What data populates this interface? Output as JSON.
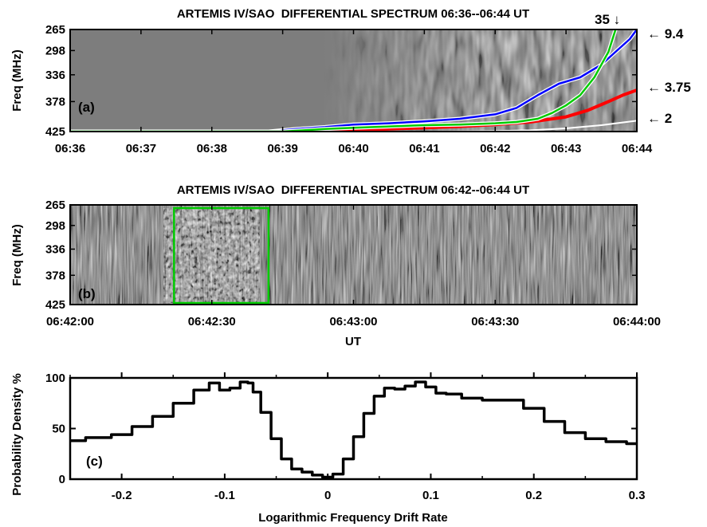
{
  "chart_data": [
    {
      "panel": "a",
      "type": "line",
      "title": "ARTEMIS IV/SAO  DIFFERENTIAL SPECTRUM 06:36--06:44 UT",
      "ylabel": "Freq (MHz)",
      "panel_label": "(a)",
      "x_tick_labels": [
        "06:36",
        "06:37",
        "06:38",
        "06:39",
        "06:40",
        "06:41",
        "06:42",
        "06:43",
        "06:44"
      ],
      "y_tick_labels": [
        "265",
        "298",
        "336",
        "378",
        "425"
      ],
      "ylim": [
        425,
        265
      ],
      "background": "differential radio spectrogram (grey)",
      "series": [
        {
          "name": "35",
          "color": "#00cc00",
          "x_minutes": [
            0,
            1,
            2,
            3,
            3.3,
            3.6,
            4.0,
            4.5,
            5.0,
            5.5,
            6.0,
            6.3,
            6.6,
            6.8,
            7.0,
            7.2,
            7.4,
            7.6,
            7.7
          ],
          "y_mhz": [
            425,
            425,
            425,
            425,
            423,
            421,
            419,
            417,
            415,
            414,
            412,
            410,
            405,
            396,
            384,
            368,
            340,
            300,
            265
          ]
        },
        {
          "name": "9.4",
          "color": "#0000ff",
          "x_minutes": [
            0,
            1,
            2,
            2.8,
            3.2,
            3.6,
            4.0,
            4.5,
            5.0,
            5.5,
            6.0,
            6.3,
            6.6,
            6.9,
            7.2,
            7.5,
            7.7,
            7.9,
            8.0
          ],
          "y_mhz": [
            425,
            425,
            425,
            425,
            421,
            418,
            414,
            412,
            409,
            405,
            398,
            388,
            368,
            350,
            340,
            320,
            300,
            280,
            265
          ]
        },
        {
          "name": "3.75",
          "color": "#ff0000",
          "x_minutes": [
            0,
            1,
            2,
            3,
            3.5,
            4.0,
            4.5,
            5.0,
            5.5,
            6.0,
            6.5,
            7.0,
            7.3,
            7.6,
            7.8,
            8.0
          ],
          "y_mhz": [
            425,
            425,
            425,
            425,
            424,
            423,
            421,
            419,
            417,
            414,
            410,
            402,
            392,
            378,
            368,
            360
          ]
        },
        {
          "name": "2",
          "color": "#ffffff",
          "x_minutes": [
            0,
            1,
            2,
            3,
            4,
            5,
            6,
            6.5,
            7.0,
            7.5,
            8.0
          ],
          "y_mhz": [
            425,
            425,
            425,
            425,
            425,
            425,
            424,
            423,
            420,
            415,
            408
          ]
        }
      ],
      "annotations": [
        "35 ↓",
        "← 9.4",
        "← 3.75",
        "← 2"
      ]
    },
    {
      "panel": "b",
      "type": "heatmap",
      "title": "ARTEMIS IV/SAO  DIFFERENTIAL SPECTRUM 06:42--06:44 UT",
      "ylabel": "Freq (MHz)",
      "xlabel": "UT",
      "panel_label": "(b)",
      "x_tick_labels": [
        "06:42:00",
        "06:42:30",
        "06:43:00",
        "06:43:30",
        "06:44:00"
      ],
      "y_tick_labels": [
        "265",
        "298",
        "336",
        "378",
        "425"
      ],
      "background": "differential radio spectrogram (grey)",
      "highlight_box": {
        "color": "#00cc00",
        "t_start_s": 22,
        "t_end_s": 42
      }
    },
    {
      "panel": "c",
      "type": "line",
      "xlabel": "Logarithmic Frequency Drift Rate",
      "ylabel": "Probability Density %",
      "panel_label": "(c)",
      "x_tick_labels": [
        "-0.2",
        "-0.1",
        "0",
        "0.1",
        "0.2",
        "0.3"
      ],
      "y_tick_labels": [
        "0",
        "50",
        "100"
      ],
      "xlim": [
        -0.25,
        0.3
      ],
      "ylim": [
        0,
        100
      ],
      "series": [
        {
          "color": "#000000",
          "x": [
            -0.25,
            -0.22,
            -0.2,
            -0.18,
            -0.16,
            -0.14,
            -0.12,
            -0.11,
            -0.1,
            -0.09,
            -0.08,
            -0.075,
            -0.07,
            -0.06,
            -0.05,
            -0.04,
            -0.03,
            -0.02,
            -0.01,
            0.0,
            0.01,
            0.02,
            0.03,
            0.04,
            0.05,
            0.06,
            0.07,
            0.08,
            0.09,
            0.1,
            0.11,
            0.12,
            0.14,
            0.16,
            0.18,
            0.2,
            0.22,
            0.24,
            0.26,
            0.28,
            0.3
          ],
          "y": [
            38,
            41,
            44,
            52,
            62,
            75,
            88,
            95,
            88,
            90,
            96,
            95,
            86,
            66,
            40,
            20,
            10,
            7,
            4,
            2,
            5,
            20,
            42,
            65,
            82,
            90,
            89,
            92,
            96,
            91,
            85,
            84,
            80,
            78,
            78,
            70,
            57,
            46,
            40,
            37,
            35
          ]
        }
      ]
    }
  ]
}
